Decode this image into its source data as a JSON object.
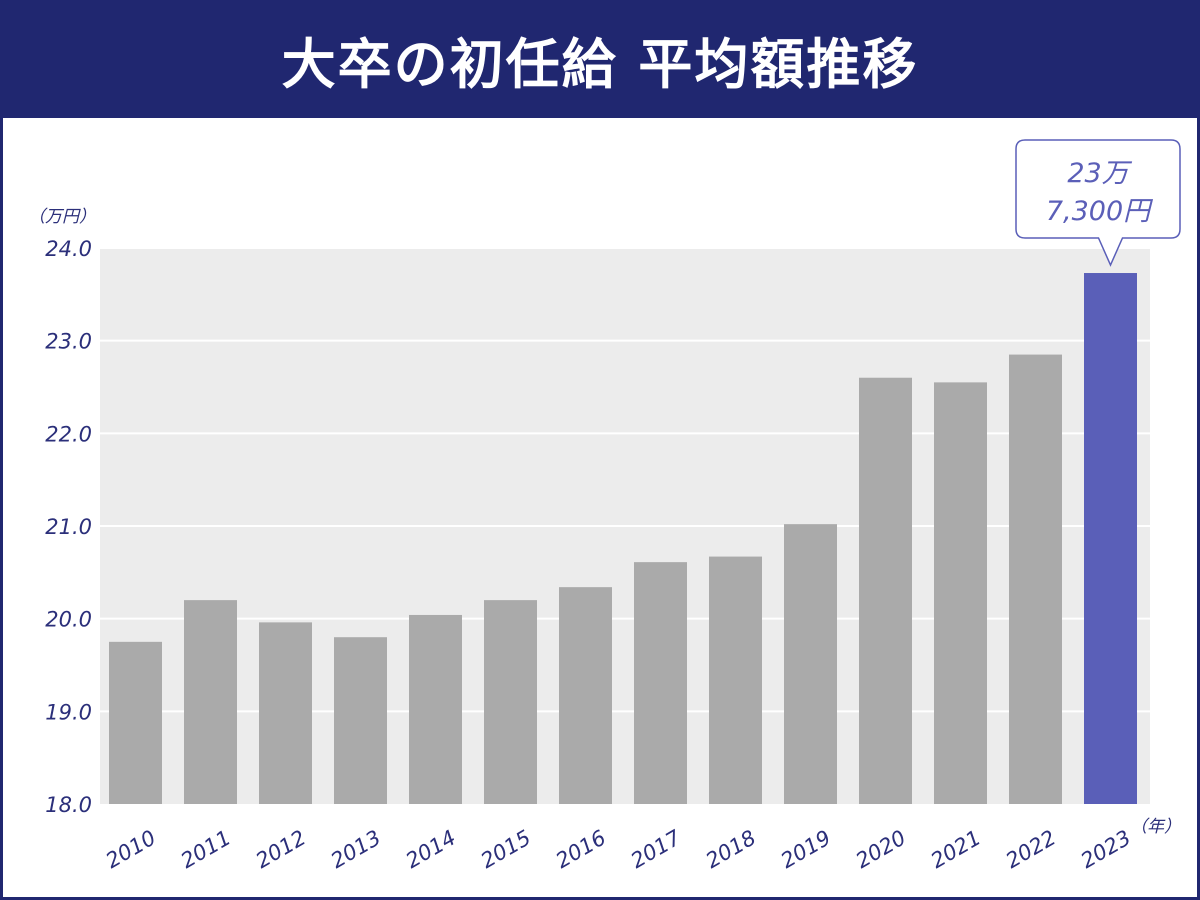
{
  "header": {
    "title": "大卒の初任給 平均額推移"
  },
  "chart_data": {
    "type": "bar",
    "title": "大卒の初任給 平均額推移",
    "ylabel": "（万円）",
    "xlabel": "（年）",
    "categories": [
      "2010",
      "2011",
      "2012",
      "2013",
      "2014",
      "2015",
      "2016",
      "2017",
      "2018",
      "2019",
      "2020",
      "2021",
      "2022",
      "2023"
    ],
    "values": [
      19.75,
      20.2,
      19.96,
      19.8,
      20.04,
      20.2,
      20.34,
      20.61,
      20.67,
      21.02,
      22.6,
      22.55,
      22.85,
      23.73
    ],
    "ylim": [
      18.0,
      24.0
    ],
    "yticks": [
      "18.0",
      "19.0",
      "20.0",
      "21.0",
      "22.0",
      "23.0",
      "24.0"
    ],
    "grid": true,
    "highlight_index": 13,
    "callout": {
      "line1": "23万",
      "line2": "7,300円"
    },
    "colors": {
      "bar": "#aaaaaa",
      "highlight": "#5a5fb8",
      "plot_bg": "#ececec",
      "grid": "#ffffff",
      "text": "#2b2f7a"
    }
  }
}
